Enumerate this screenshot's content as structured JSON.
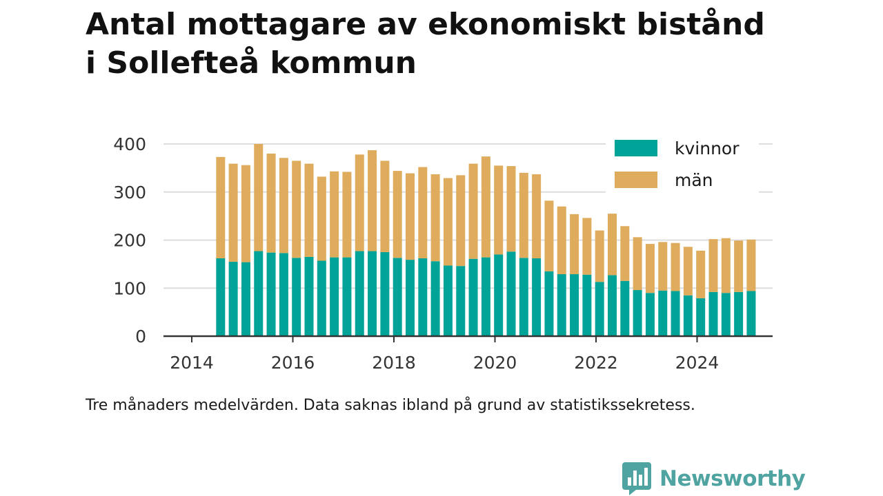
{
  "title_line1": "Antal mottagare av ekonomiskt bistånd",
  "title_line2": "i Sollefteå kommun",
  "note": "Tre månaders medelvärden. Data saknas ibland på grund av statistikssekretess.",
  "brand": "Newsworthy",
  "colors": {
    "kvinnor": "#00a398",
    "man": "#deac5c",
    "grid": "#dddddd",
    "axis": "#333333",
    "logo": "#4fa3a0"
  },
  "chart_data": {
    "type": "bar",
    "stacked": true,
    "ylim": [
      0,
      400
    ],
    "yticks": [
      0,
      100,
      200,
      300,
      400
    ],
    "xticks": [
      "2014",
      "2016",
      "2018",
      "2020",
      "2022",
      "2024"
    ],
    "legend_position": "top-right",
    "grid": true,
    "categories": [
      "2014-Q2",
      "2014-Q3",
      "2014-Q4",
      "2015-Q1",
      "2015-Q2",
      "2015-Q3",
      "2015-Q4",
      "2016-Q1",
      "2016-Q2",
      "2016-Q3",
      "2016-Q4",
      "2017-Q1",
      "2017-Q2",
      "2017-Q3",
      "2017-Q4",
      "2018-Q1",
      "2018-Q2",
      "2018-Q3",
      "2018-Q4",
      "2019-Q1",
      "2019-Q2",
      "2019-Q3",
      "2019-Q4",
      "2020-Q1",
      "2020-Q2",
      "2020-Q3",
      "2020-Q4",
      "2021-Q1",
      "2021-Q2",
      "2021-Q3",
      "2021-Q4",
      "2022-Q1",
      "2022-Q2",
      "2022-Q3",
      "2022-Q4",
      "2023-Q1",
      "2023-Q2",
      "2023-Q3",
      "2023-Q4",
      "2024-Q1",
      "2024-Q2",
      "2024-Q3",
      "2024-Q4"
    ],
    "series": [
      {
        "name": "kvinnor",
        "values": [
          162,
          155,
          154,
          177,
          174,
          173,
          163,
          165,
          157,
          164,
          164,
          177,
          177,
          175,
          163,
          159,
          162,
          156,
          147,
          146,
          161,
          164,
          170,
          176,
          163,
          162,
          135,
          129,
          129,
          128,
          113,
          127,
          115,
          96,
          90,
          95,
          94,
          85,
          79,
          92,
          90,
          92,
          94
        ]
      },
      {
        "name": "män",
        "values": [
          211,
          204,
          202,
          223,
          206,
          198,
          202,
          194,
          175,
          179,
          178,
          201,
          210,
          190,
          181,
          180,
          190,
          181,
          182,
          189,
          198,
          210,
          185,
          178,
          177,
          175,
          147,
          141,
          125,
          118,
          107,
          128,
          114,
          110,
          102,
          101,
          100,
          101,
          99,
          110,
          114,
          107,
          107
        ]
      }
    ]
  }
}
